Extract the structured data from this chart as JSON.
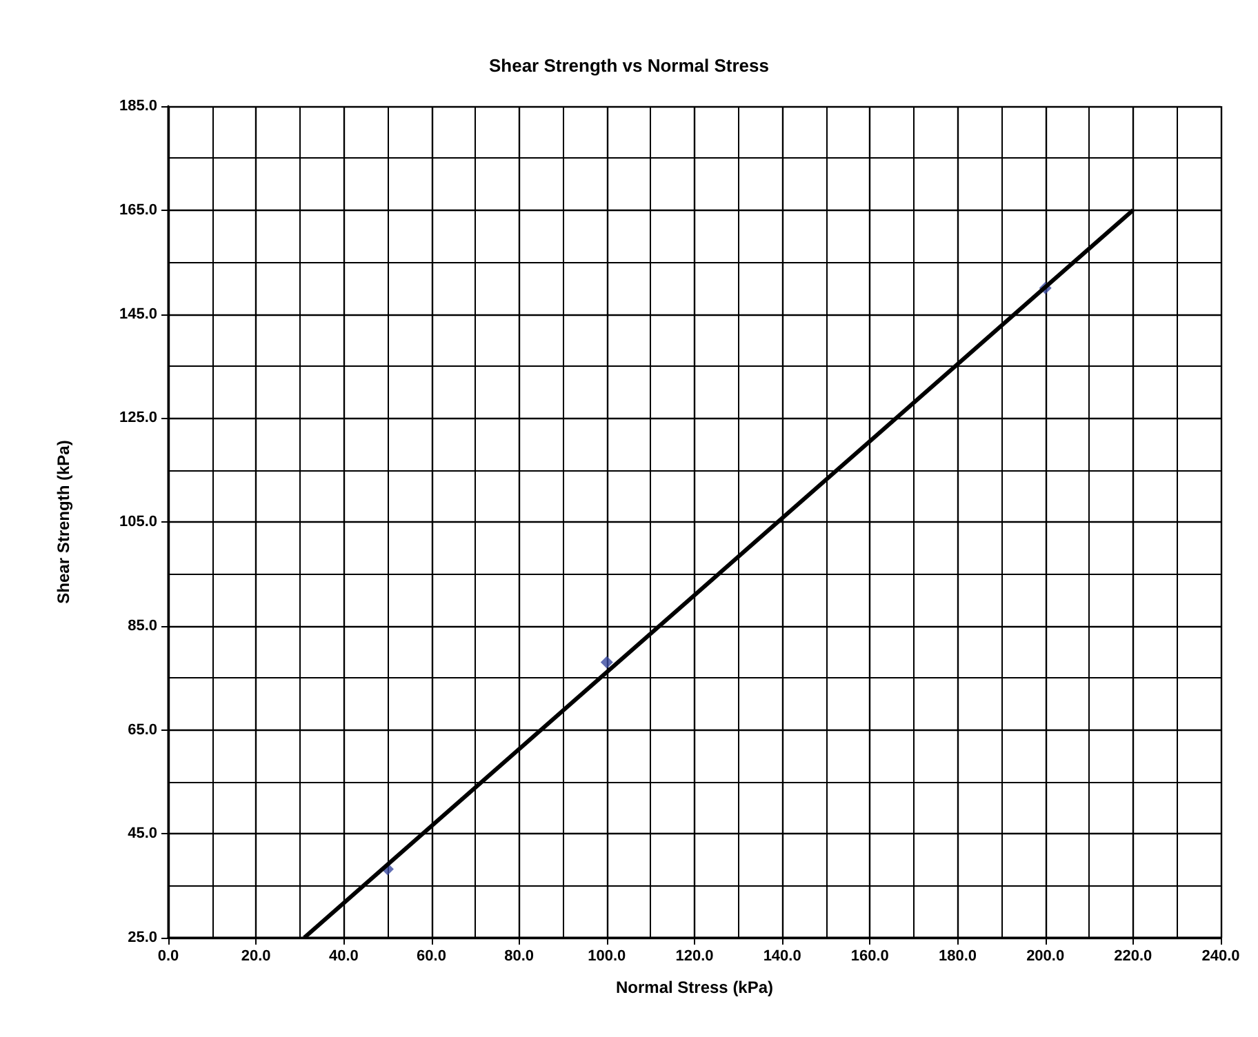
{
  "chart_data": {
    "type": "scatter",
    "title": "Shear Strength vs Normal Stress",
    "xlabel": "Normal Stress (kPa)",
    "ylabel": "Shear Strength (kPa)",
    "series": [
      {
        "color": "#3a4aa0",
        "marker": "diamond",
        "x": [
          50,
          100,
          200
        ],
        "values": [
          38.2,
          78,
          150
        ]
      },
      {
        "type": "line",
        "color": "#000000",
        "marker": "none",
        "line_style": "solid",
        "x": [
          31,
          220
        ],
        "values": [
          25,
          165
        ]
      }
    ],
    "xlim": [
      0,
      240
    ],
    "xticks": [
      {
        "value": 0,
        "label": "0.0"
      },
      {
        "value": 20,
        "label": "20.0"
      },
      {
        "value": 40,
        "label": "40.0"
      },
      {
        "value": 60,
        "label": "60.0"
      },
      {
        "value": 80,
        "label": "80.0"
      },
      {
        "value": 100,
        "label": "100.0"
      },
      {
        "value": 120,
        "label": "120.0"
      },
      {
        "value": 140,
        "label": "140.0"
      },
      {
        "value": 160,
        "label": "160.0"
      },
      {
        "value": 180,
        "label": "180.0"
      },
      {
        "value": 200,
        "label": "200.0"
      },
      {
        "value": 220,
        "label": "220.0"
      },
      {
        "value": 240,
        "label": "240.0"
      }
    ],
    "ylim": [
      25,
      185
    ],
    "yticks": [
      {
        "value": 25,
        "label": "25.0"
      },
      {
        "value": 45,
        "label": "45.0"
      },
      {
        "value": 65,
        "label": "65.0"
      },
      {
        "value": 85,
        "label": "85.0"
      },
      {
        "value": 105,
        "label": "105.0"
      },
      {
        "value": 125,
        "label": "125.0"
      },
      {
        "value": 145,
        "label": "145.0"
      },
      {
        "value": 165,
        "label": "165.0"
      },
      {
        "value": 185,
        "label": "185.0"
      }
    ],
    "grid": true
  }
}
